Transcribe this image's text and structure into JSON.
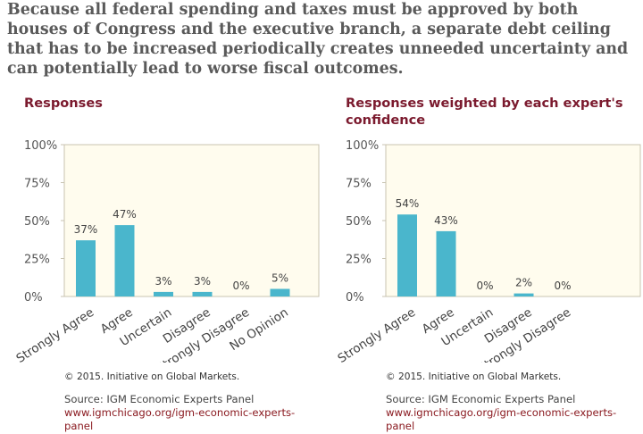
{
  "headline": "Because all federal spending and taxes must be approved by both houses of Congress and the executive branch, a separate debt ceiling that has to be increased periodically creates unneeded uncertainty and can potentially lead to worse fiscal outcomes.",
  "bar_color": "#4ab6cc",
  "plot_bg": "#fffcee",
  "plot_border": "#c8c3b0",
  "panels": [
    {
      "title": "Responses",
      "copyright": "© 2015. Initiative on Global Markets.",
      "source": "Source: IGM Economic Experts Panel",
      "link": "www.igmchicago.org/igm-economic-experts-panel"
    },
    {
      "title": "Responses weighted by each expert's confidence",
      "copyright": "© 2015. Initiative on Global Markets.",
      "source": "Source: IGM Economic Experts Panel",
      "link": "www.igmchicago.org/igm-economic-experts-panel"
    }
  ],
  "chart_data": [
    {
      "type": "bar",
      "title": "Responses",
      "categories": [
        "Strongly Agree",
        "Agree",
        "Uncertain",
        "Disagree",
        "Strongly Disagree",
        "No Opinion"
      ],
      "values": [
        37,
        47,
        3,
        3,
        0,
        5
      ],
      "value_labels": [
        "37%",
        "47%",
        "3%",
        "3%",
        "0%",
        "5%"
      ],
      "yticks": [
        "0%",
        "25%",
        "50%",
        "75%",
        "100%"
      ],
      "ylim": [
        0,
        100
      ],
      "grid": false
    },
    {
      "type": "bar",
      "title": "Responses weighted by each expert's confidence",
      "categories": [
        "Strongly Agree",
        "Agree",
        "Uncertain",
        "Disagree",
        "Strongly Disagree"
      ],
      "values": [
        54,
        43,
        0,
        2,
        0
      ],
      "value_labels": [
        "54%",
        "43%",
        "0%",
        "2%",
        "0%"
      ],
      "yticks": [
        "0%",
        "25%",
        "50%",
        "75%",
        "100%"
      ],
      "ylim": [
        0,
        100
      ],
      "grid": false
    }
  ]
}
